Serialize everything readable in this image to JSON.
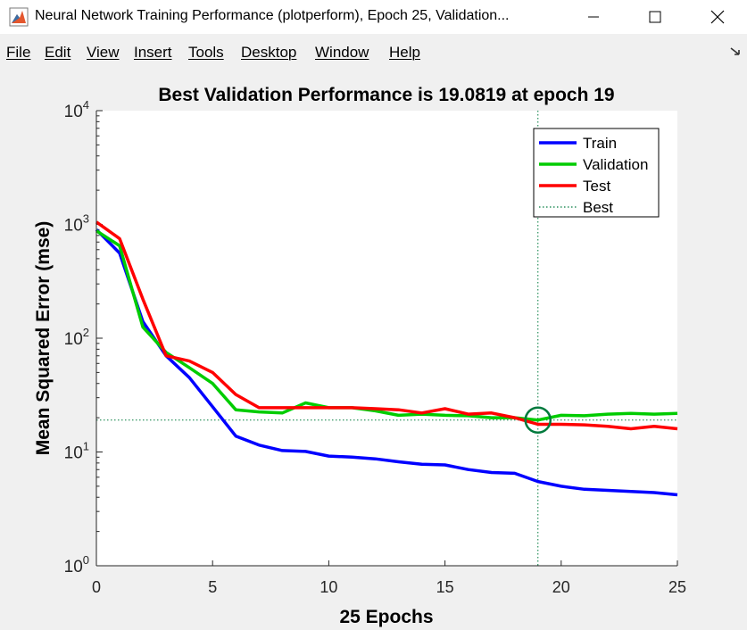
{
  "window": {
    "title": "Neural Network Training Performance (plotperform), Epoch 25, Validation..."
  },
  "menu": {
    "items": [
      "File",
      "Edit",
      "View",
      "Insert",
      "Tools",
      "Desktop",
      "Window",
      "Help"
    ]
  },
  "icons": {
    "app": "matlab-figure-icon",
    "minimize": "minimize-icon",
    "maximize": "maximize-icon",
    "close": "close-icon",
    "dock": "dock-arrow-icon"
  },
  "colors": {
    "train": "#0000ff",
    "validation": "#00cc00",
    "test": "#ff0000",
    "best": "#007a3d"
  },
  "chart_data": {
    "type": "line",
    "title": "Best Validation Performance is 19.0819 at epoch 19",
    "xlabel": "25 Epochs",
    "ylabel": "Mean Squared Error  (mse)",
    "xlim": [
      0,
      25
    ],
    "ylim": [
      1,
      10000
    ],
    "yscale": "log",
    "xticks": [
      "0",
      "5",
      "10",
      "15",
      "20",
      "25"
    ],
    "yticks": [
      {
        "base": "10",
        "exp": "0"
      },
      {
        "base": "10",
        "exp": "1"
      },
      {
        "base": "10",
        "exp": "2"
      },
      {
        "base": "10",
        "exp": "3"
      },
      {
        "base": "10",
        "exp": "4"
      }
    ],
    "x": [
      0,
      1,
      2,
      3,
      4,
      5,
      6,
      7,
      8,
      9,
      10,
      11,
      12,
      13,
      14,
      15,
      16,
      17,
      18,
      19,
      20,
      21,
      22,
      23,
      24,
      25
    ],
    "series": [
      {
        "name": "Train",
        "values": [
          900,
          560,
          140,
          70,
          45,
          25,
          13.8,
          11.5,
          10.3,
          10.1,
          9.2,
          9.0,
          8.7,
          8.2,
          7.8,
          7.7,
          7.0,
          6.6,
          6.5,
          5.5,
          5.0,
          4.7,
          4.6,
          4.5,
          4.4,
          4.2
        ]
      },
      {
        "name": "Validation",
        "values": [
          880,
          650,
          125,
          75,
          55,
          40,
          23.5,
          22.5,
          22.0,
          27.0,
          24.5,
          24.5,
          23.0,
          21.0,
          21.5,
          21.0,
          20.8,
          20.0,
          20.0,
          19.0819,
          21.0,
          20.8,
          21.5,
          21.8,
          21.5,
          21.8
        ]
      },
      {
        "name": "Test",
        "values": [
          1050,
          750,
          220,
          70,
          63,
          50,
          32.0,
          24.5,
          24.5,
          24.5,
          24.5,
          24.5,
          24.0,
          23.5,
          22.0,
          24.0,
          21.5,
          22.0,
          20.0,
          17.5,
          17.5,
          17.3,
          16.8,
          16.0,
          16.8,
          16.0
        ]
      }
    ],
    "best": {
      "label": "Best",
      "epoch": 19,
      "value": 19.0819
    },
    "legend": {
      "entries": [
        "Train",
        "Validation",
        "Test",
        "Best"
      ],
      "placement": "top-right"
    }
  }
}
